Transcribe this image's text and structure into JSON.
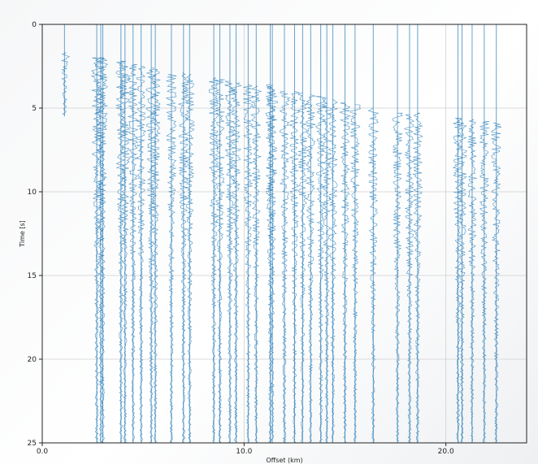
{
  "chart_data": {
    "type": "line",
    "title": "",
    "xlabel": "Offset (km)",
    "ylabel": "Time [s]",
    "xlim": [
      0,
      24
    ],
    "ylim": [
      25,
      0
    ],
    "y_inverted": true,
    "x_ticks": [
      "0.0",
      "10.0",
      "20.0"
    ],
    "x_tick_values": [
      0,
      10,
      20
    ],
    "y_ticks": [
      "0",
      "5",
      "10",
      "15",
      "20",
      "25"
    ],
    "y_tick_values": [
      0,
      5,
      10,
      15,
      20,
      25
    ],
    "grid": true,
    "trace_color": "#1f77b4",
    "traces": [
      {
        "offset": 1.1,
        "onset": 1.7,
        "end": 5.5
      },
      {
        "offset": 2.7,
        "onset": 2.0,
        "end": 25
      },
      {
        "offset": 2.9,
        "onset": 2.0,
        "end": 25
      },
      {
        "offset": 3.0,
        "onset": 2.0,
        "end": 25
      },
      {
        "offset": 3.9,
        "onset": 2.2,
        "end": 25
      },
      {
        "offset": 4.1,
        "onset": 2.3,
        "end": 25
      },
      {
        "offset": 4.5,
        "onset": 2.4,
        "end": 25
      },
      {
        "offset": 4.9,
        "onset": 2.5,
        "end": 25
      },
      {
        "offset": 5.4,
        "onset": 2.6,
        "end": 25
      },
      {
        "offset": 5.6,
        "onset": 2.7,
        "end": 25
      },
      {
        "offset": 6.4,
        "onset": 3.0,
        "end": 25
      },
      {
        "offset": 7.0,
        "onset": 2.9,
        "end": 25
      },
      {
        "offset": 7.3,
        "onset": 3.0,
        "end": 25
      },
      {
        "offset": 8.5,
        "onset": 3.2,
        "end": 25
      },
      {
        "offset": 8.8,
        "onset": 3.3,
        "end": 25
      },
      {
        "offset": 9.3,
        "onset": 3.4,
        "end": 25
      },
      {
        "offset": 9.6,
        "onset": 3.5,
        "end": 25
      },
      {
        "offset": 10.2,
        "onset": 3.6,
        "end": 25
      },
      {
        "offset": 10.6,
        "onset": 3.7,
        "end": 25
      },
      {
        "offset": 11.3,
        "onset": 3.6,
        "end": 25
      },
      {
        "offset": 11.4,
        "onset": 3.6,
        "end": 25
      },
      {
        "offset": 12.0,
        "onset": 4.0,
        "end": 25
      },
      {
        "offset": 12.5,
        "onset": 4.0,
        "end": 25
      },
      {
        "offset": 12.9,
        "onset": 4.1,
        "end": 25
      },
      {
        "offset": 13.3,
        "onset": 4.2,
        "end": 25
      },
      {
        "offset": 13.8,
        "onset": 4.3,
        "end": 25
      },
      {
        "offset": 14.1,
        "onset": 4.4,
        "end": 25
      },
      {
        "offset": 14.4,
        "onset": 4.5,
        "end": 25
      },
      {
        "offset": 15.0,
        "onset": 4.7,
        "end": 25
      },
      {
        "offset": 15.5,
        "onset": 4.8,
        "end": 25
      },
      {
        "offset": 16.4,
        "onset": 5.0,
        "end": 25
      },
      {
        "offset": 17.6,
        "onset": 5.3,
        "end": 25
      },
      {
        "offset": 18.2,
        "onset": 5.4,
        "end": 25
      },
      {
        "offset": 18.6,
        "onset": 5.3,
        "end": 25
      },
      {
        "offset": 20.6,
        "onset": 5.6,
        "end": 25
      },
      {
        "offset": 20.8,
        "onset": 5.6,
        "end": 25
      },
      {
        "offset": 21.3,
        "onset": 5.7,
        "end": 25
      },
      {
        "offset": 21.9,
        "onset": 5.8,
        "end": 25
      },
      {
        "offset": 22.5,
        "onset": 5.9,
        "end": 25
      }
    ]
  }
}
